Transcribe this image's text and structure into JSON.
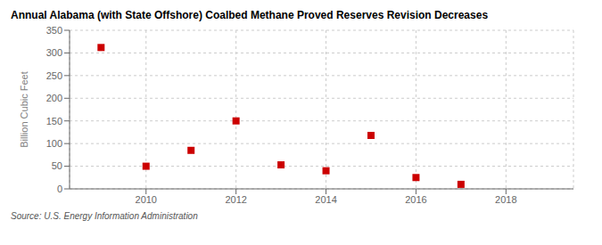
{
  "chart_data": {
    "type": "scatter",
    "title": "Annual Alabama (with State Offshore) Coalbed Methane Proved Reserves Revision Decreases",
    "ylabel": "Billion Cubic Feet",
    "x": [
      2009,
      2010,
      2011,
      2012,
      2013,
      2014,
      2015,
      2016,
      2017
    ],
    "values": [
      312,
      50,
      85,
      150,
      53,
      40,
      118,
      25,
      10
    ],
    "color": "#cc0000",
    "marker": "square",
    "xlim": [
      2008.3,
      2019.5
    ],
    "xticks": [
      2010,
      2012,
      2014,
      2016,
      2018
    ],
    "ylim": [
      0,
      350
    ],
    "yticks": [
      0,
      50,
      100,
      150,
      200,
      250,
      300,
      350
    ],
    "grid": true,
    "annotations": [
      "Source: U.S. Energy Information Administration"
    ]
  }
}
